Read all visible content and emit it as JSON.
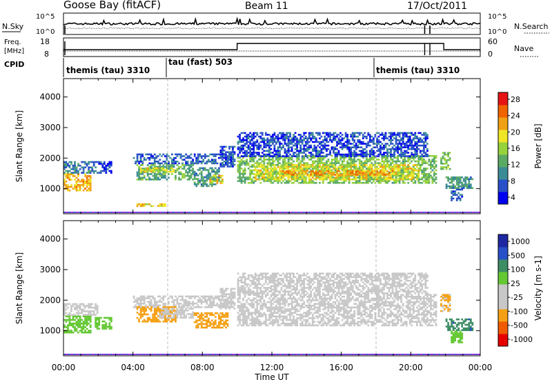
{
  "header": {
    "station": "Goose Bay (fitACF)",
    "beam": "Beam 11",
    "date": "17/Oct/2011"
  },
  "noise_panel": {
    "left_label": "N.Sky",
    "right_label": "N.Search",
    "left_ticks": [
      "10^5",
      "10^0"
    ],
    "right_ticks": [
      "10^5",
      "10^0"
    ]
  },
  "freq_panel": {
    "left_label_1": "Freq.",
    "left_label_2": "[MHz]",
    "right_label": "Nave",
    "left_ticks": [
      "18",
      "8"
    ],
    "right_ticks": [
      "60",
      "0"
    ]
  },
  "cpid": {
    "label": "CPID",
    "segments": [
      {
        "name": "themis (tau) 3310",
        "start_hour": 0
      },
      {
        "name": "tau (fast) 503",
        "start_hour": 6
      },
      {
        "name": "themis (tau) 3310",
        "start_hour": 18
      }
    ]
  },
  "xaxis": {
    "label": "Time UT",
    "ticks": [
      "00:00",
      "04:00",
      "08:00",
      "12:00",
      "16:00",
      "20:00",
      "00:00"
    ]
  },
  "colors": {
    "power": [
      "#0000f0",
      "#2850c8",
      "#3c8c96",
      "#5aaa64",
      "#96d23c",
      "#f0e628",
      "#f0a014",
      "#f06400",
      "#e61414"
    ],
    "velocity": [
      "#e60000",
      "#f05a00",
      "#f5a014",
      "#c8c8c8",
      "#c8c8c8",
      "#64c832",
      "#3c8c64",
      "#2850c8",
      "#1e28a0"
    ],
    "gate_marker": "#8a2be2"
  },
  "chart_data": [
    {
      "type": "heatmap",
      "panel": "power",
      "ylabel": "Slant Range [km]",
      "ylim": [
        180,
        4600
      ],
      "yticks": [
        1000,
        2000,
        3000,
        4000
      ],
      "xlim_hours": [
        0,
        24
      ],
      "colorbar": {
        "label": "Power [dB]",
        "ticks": [
          "28",
          "24",
          "20",
          "16",
          "12",
          "8",
          "4"
        ],
        "range": [
          0,
          32
        ]
      },
      "echo_regions": [
        {
          "t": [
            0.0,
            1.6
          ],
          "r": [
            900,
            1500
          ],
          "value": 22
        },
        {
          "t": [
            0.0,
            2.0
          ],
          "r": [
            1500,
            1900
          ],
          "value": 8
        },
        {
          "t": [
            2.0,
            2.8
          ],
          "r": [
            1500,
            1900
          ],
          "value": 5
        },
        {
          "t": [
            4.0,
            9.8
          ],
          "r": [
            1800,
            2150
          ],
          "value": 6
        },
        {
          "t": [
            4.2,
            7.5
          ],
          "r": [
            1300,
            1800
          ],
          "value": 12
        },
        {
          "t": [
            4.4,
            6.4
          ],
          "r": [
            1500,
            1700
          ],
          "value": 19
        },
        {
          "t": [
            7.5,
            9.0
          ],
          "r": [
            1050,
            1700
          ],
          "value": 10
        },
        {
          "t": [
            8.4,
            9.2
          ],
          "r": [
            1150,
            1450
          ],
          "value": 20
        },
        {
          "t": [
            9.0,
            9.9
          ],
          "r": [
            1700,
            2400
          ],
          "value": 6
        },
        {
          "t": [
            10.0,
            21.5
          ],
          "r": [
            1150,
            2100
          ],
          "value": 14
        },
        {
          "t": [
            11.0,
            20.5
          ],
          "r": [
            1300,
            1800
          ],
          "value": 19
        },
        {
          "t": [
            12.5,
            19.0
          ],
          "r": [
            1400,
            1600
          ],
          "value": 24
        },
        {
          "t": [
            10.0,
            21.0
          ],
          "r": [
            2000,
            2850
          ],
          "value": 5
        },
        {
          "t": [
            21.7,
            22.3
          ],
          "r": [
            1600,
            2200
          ],
          "value": 15
        },
        {
          "t": [
            22.0,
            23.6
          ],
          "r": [
            1000,
            1400
          ],
          "value": 10
        },
        {
          "t": [
            22.3,
            23.0
          ],
          "r": [
            600,
            1000
          ],
          "value": 6
        },
        {
          "t": [
            4.2,
            5.9
          ],
          "r": [
            420,
            520
          ],
          "value": 20
        }
      ]
    },
    {
      "type": "heatmap",
      "panel": "velocity",
      "ylabel": "Slant Range [km]",
      "ylim": [
        180,
        4600
      ],
      "yticks": [
        1000,
        2000,
        3000,
        4000
      ],
      "xlim_hours": [
        0,
        24
      ],
      "colorbar": {
        "label": "Velocity [m s-1]",
        "ticks": [
          "1000",
          "500",
          "100",
          "25",
          "-25",
          "-100",
          "-500",
          "-1000"
        ],
        "range": [
          -1500,
          1500
        ]
      },
      "echo_regions": [
        {
          "t": [
            0.0,
            1.6
          ],
          "r": [
            900,
            1500
          ],
          "value": 60
        },
        {
          "t": [
            0.0,
            2.0
          ],
          "r": [
            1500,
            1900
          ],
          "value": 0
        },
        {
          "t": [
            1.8,
            2.8
          ],
          "r": [
            1050,
            1450
          ],
          "value": 60
        },
        {
          "t": [
            4.0,
            9.8
          ],
          "r": [
            1750,
            2150
          ],
          "value": 0
        },
        {
          "t": [
            4.2,
            6.5
          ],
          "r": [
            1300,
            1800
          ],
          "value": -300
        },
        {
          "t": [
            5.5,
            7.5
          ],
          "r": [
            1400,
            1750
          ],
          "value": 0
        },
        {
          "t": [
            7.5,
            9.5
          ],
          "r": [
            1050,
            1600
          ],
          "value": -200
        },
        {
          "t": [
            9.0,
            9.9
          ],
          "r": [
            1700,
            2400
          ],
          "value": 0
        },
        {
          "t": [
            10.0,
            21.5
          ],
          "r": [
            1150,
            2200
          ],
          "value": 0
        },
        {
          "t": [
            10.0,
            21.0
          ],
          "r": [
            2200,
            2900
          ],
          "value": 0
        },
        {
          "t": [
            21.7,
            22.3
          ],
          "r": [
            1600,
            2200
          ],
          "value": -120
        },
        {
          "t": [
            22.0,
            23.6
          ],
          "r": [
            1000,
            1400
          ],
          "value": 400
        },
        {
          "t": [
            22.3,
            23.0
          ],
          "r": [
            600,
            1000
          ],
          "value": 60
        }
      ]
    }
  ]
}
